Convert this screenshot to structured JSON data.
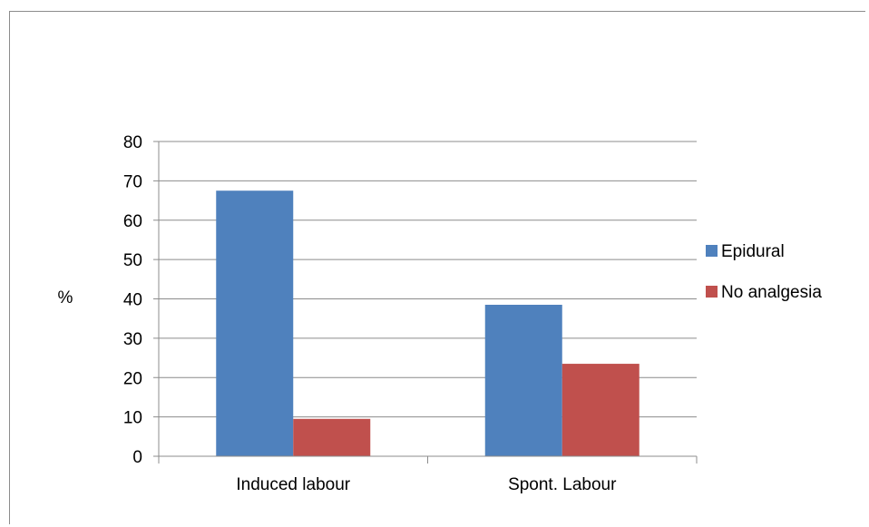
{
  "chart_data": {
    "type": "bar",
    "ylabel": "%",
    "xlabel": "",
    "title": "",
    "ylim": [
      0,
      80
    ],
    "yticks": [
      0,
      10,
      20,
      30,
      40,
      50,
      60,
      70,
      80
    ],
    "categories": [
      "Induced labour",
      "Spont. Labour"
    ],
    "series": [
      {
        "name": "Epidural",
        "values": [
          67.5,
          38.5
        ],
        "color": "#4f81bd"
      },
      {
        "name": "No analgesia",
        "values": [
          9.5,
          23.5
        ],
        "color": "#c0504d"
      }
    ],
    "grid": true,
    "legend_position": "right"
  }
}
